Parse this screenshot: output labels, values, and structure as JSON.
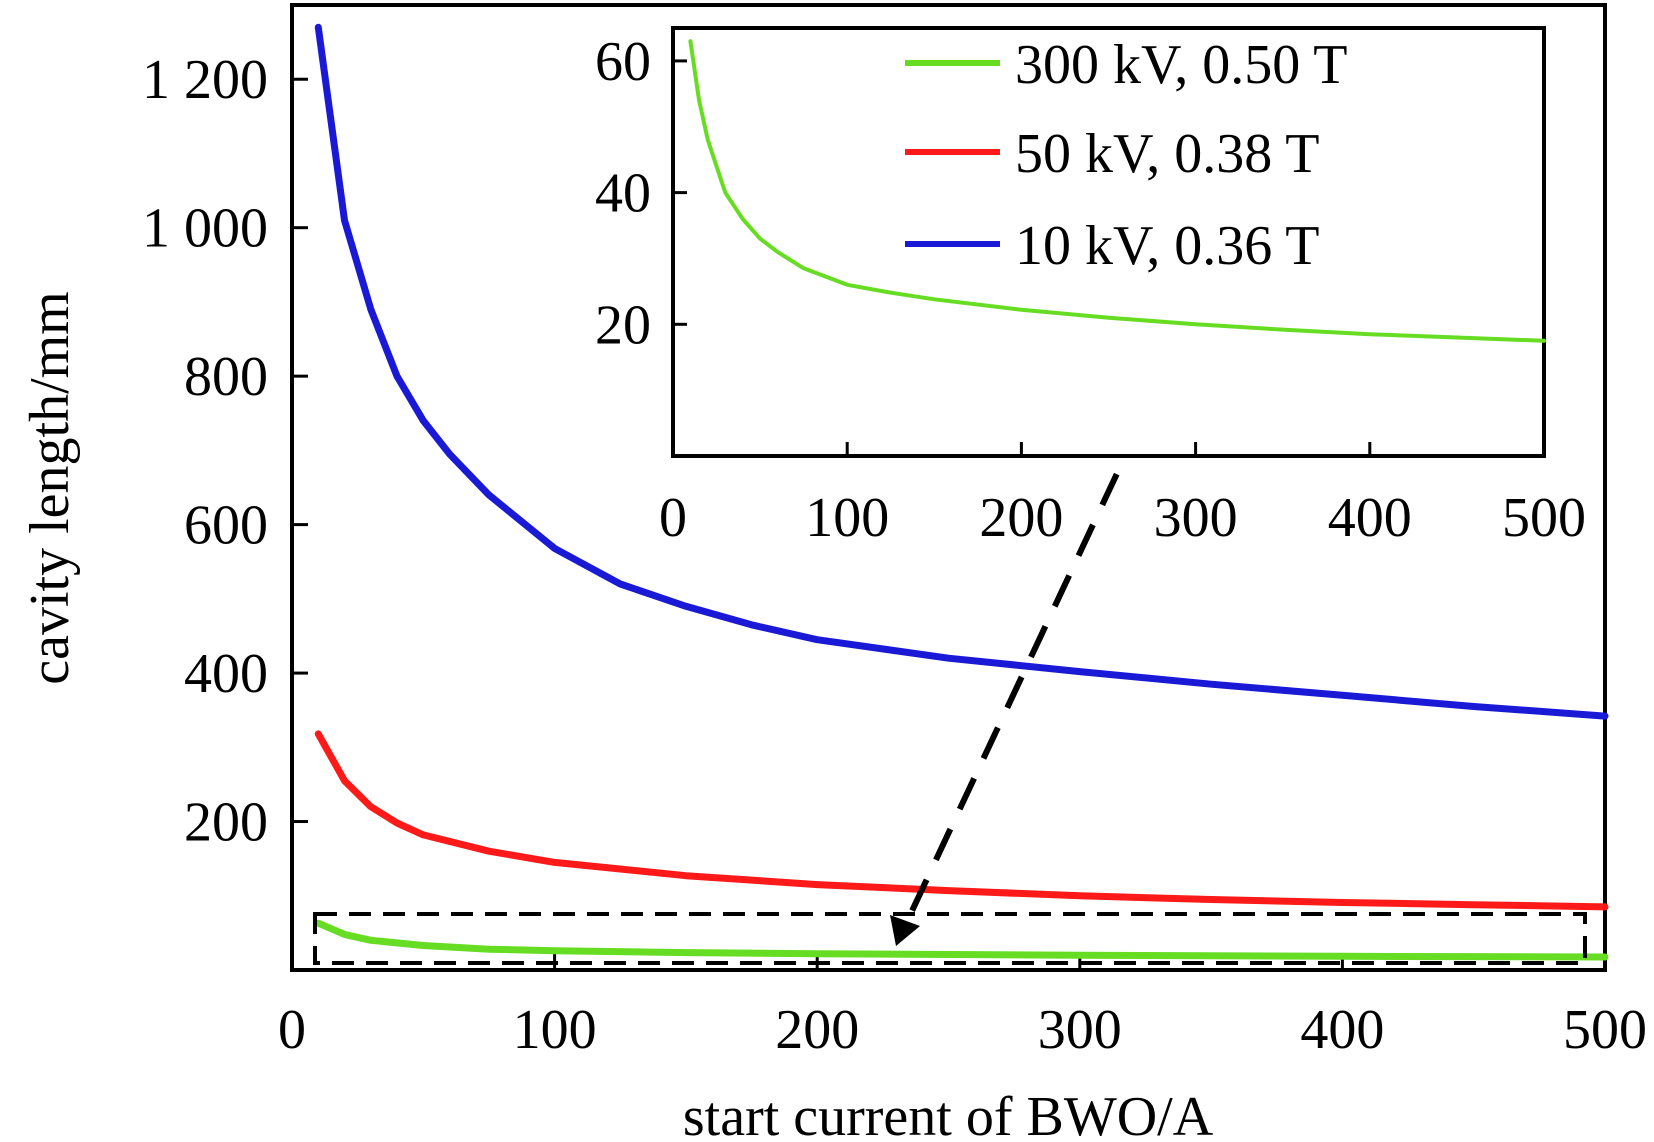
{
  "chart_data": [
    {
      "id": "main",
      "type": "line",
      "xlabel": "start current of BWO/A",
      "ylabel": "cavity length/mm",
      "xlim": [
        0,
        500
      ],
      "ylim": [
        0,
        1300
      ],
      "xticks": [
        0,
        100,
        200,
        300,
        400,
        500
      ],
      "yticks": [
        200,
        400,
        600,
        800,
        1000,
        1200
      ],
      "xtick_labels": [
        "0",
        "100",
        "200",
        "300",
        "400",
        "500"
      ],
      "ytick_labels": [
        "200",
        "400",
        "600",
        "800",
        "1 000",
        "1 200"
      ],
      "grid": false,
      "series": [
        {
          "name": "10 kV, 0.36 T",
          "color": "#1a1ad6",
          "x": [
            10,
            20,
            30,
            40,
            50,
            60,
            75,
            100,
            125,
            150,
            175,
            200,
            250,
            300,
            350,
            400,
            450,
            500
          ],
          "y": [
            1270,
            1010,
            890,
            800,
            740,
            695,
            640,
            568,
            520,
            490,
            465,
            445,
            420,
            402,
            385,
            370,
            355,
            342
          ]
        },
        {
          "name": "50 kV, 0.38 T",
          "color": "#ff1a1a",
          "x": [
            10,
            20,
            30,
            40,
            50,
            75,
            100,
            150,
            200,
            250,
            300,
            350,
            400,
            450,
            500
          ],
          "y": [
            318,
            255,
            220,
            198,
            182,
            160,
            145,
            127,
            115,
            107,
            100,
            95,
            91,
            88,
            85
          ]
        },
        {
          "name": "300 kV, 0.50 T",
          "color": "#66dd22",
          "x": [
            10,
            20,
            30,
            50,
            75,
            100,
            150,
            200,
            300,
            400,
            500
          ],
          "y": [
            63,
            48,
            40,
            33,
            28,
            26,
            23.5,
            22,
            20,
            18.5,
            17.5
          ]
        }
      ],
      "annotation": "dashed rectangle marks the 300 kV region magnified in the inset"
    },
    {
      "id": "inset",
      "type": "line",
      "xlim": [
        0,
        500
      ],
      "ylim": [
        0,
        65
      ],
      "xticks": [
        0,
        100,
        200,
        300,
        400,
        500
      ],
      "yticks": [
        20,
        40,
        60
      ],
      "xtick_labels": [
        "0",
        "100",
        "200",
        "300",
        "400",
        "500"
      ],
      "ytick_labels": [
        "20",
        "40",
        "60"
      ],
      "legend": {
        "position": "top-right",
        "entries": [
          {
            "label": "300 kV, 0.50 T",
            "color": "#66dd22"
          },
          {
            "label": "50 kV, 0.38 T",
            "color": "#ff1a1a"
          },
          {
            "label": "10 kV, 0.36 T",
            "color": "#1a1ad6"
          }
        ]
      },
      "series": [
        {
          "name": "300 kV, 0.50 T",
          "color": "#66dd22",
          "x": [
            10,
            15,
            20,
            25,
            30,
            40,
            50,
            60,
            75,
            100,
            125,
            150,
            200,
            250,
            300,
            350,
            400,
            450,
            500
          ],
          "y": [
            63,
            54,
            48,
            44,
            40,
            36,
            33,
            31,
            28.5,
            26,
            24.8,
            23.8,
            22.2,
            21,
            20,
            19.2,
            18.5,
            18,
            17.5
          ]
        }
      ]
    }
  ]
}
